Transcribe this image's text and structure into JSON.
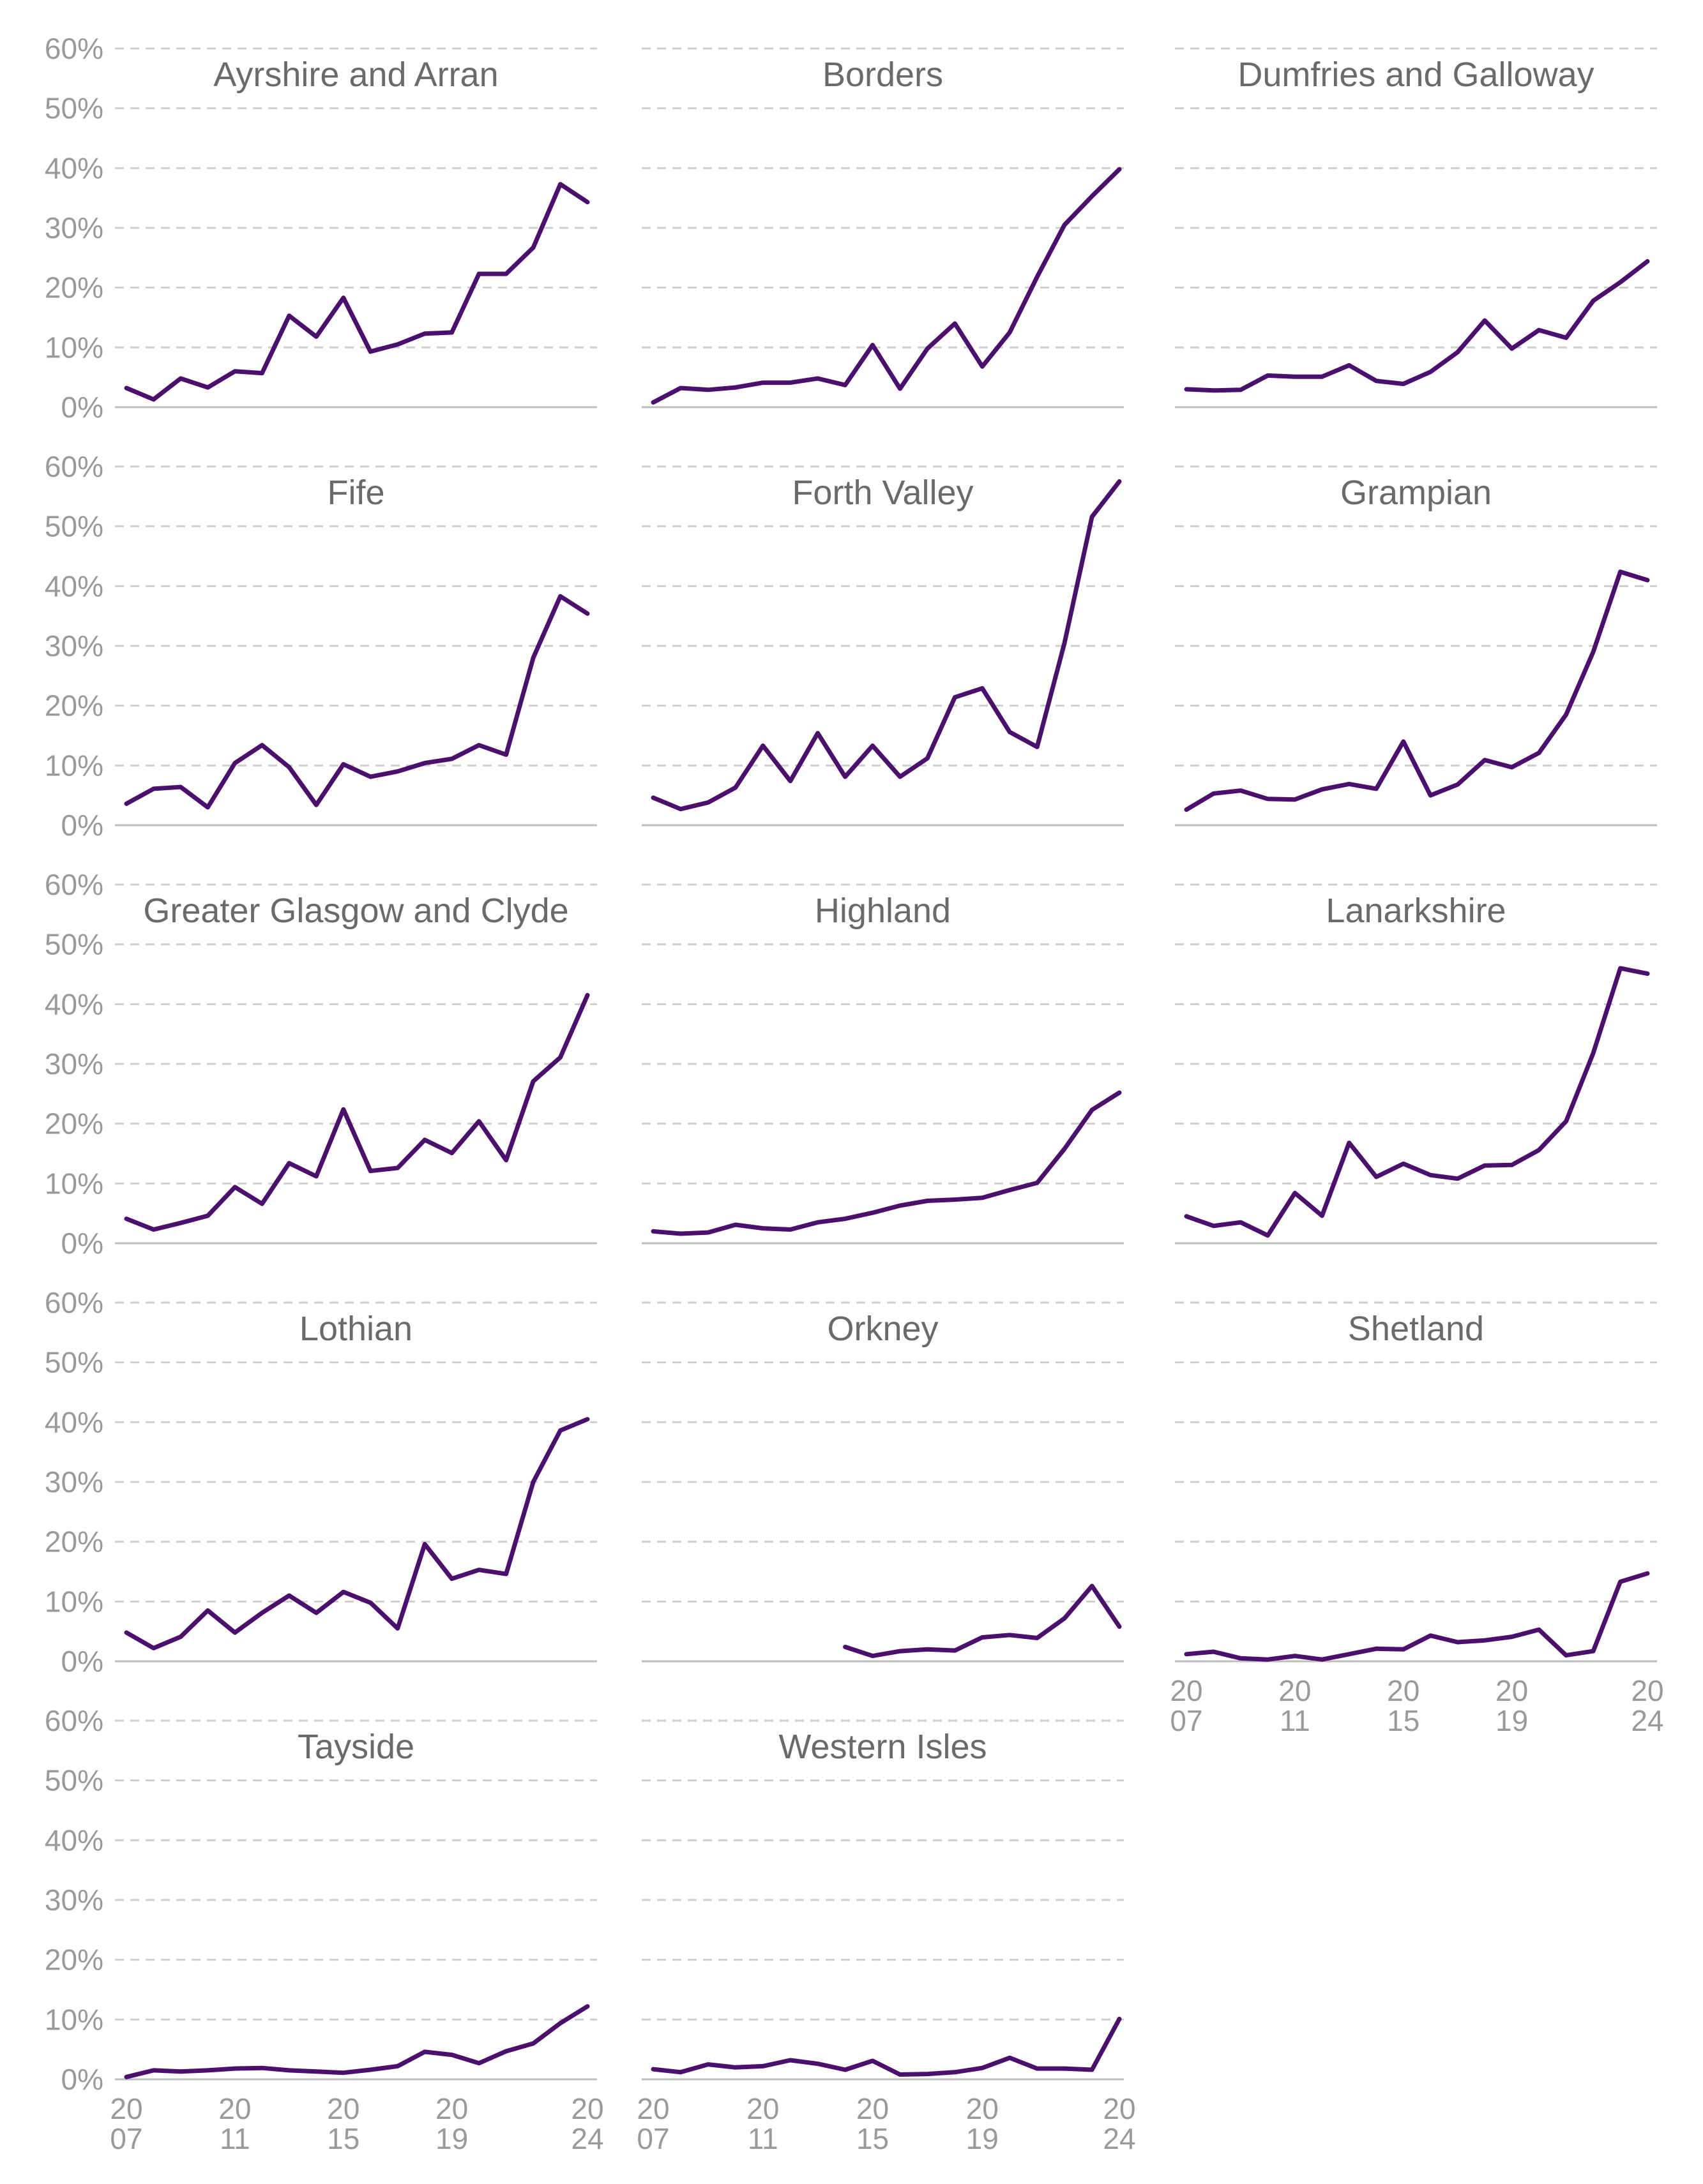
{
  "chart_data": {
    "type": "line",
    "layout": "small-multiples",
    "x": [
      2007,
      2008,
      2009,
      2010,
      2011,
      2012,
      2013,
      2014,
      2015,
      2016,
      2017,
      2018,
      2019,
      2020,
      2021,
      2022,
      2023,
      2024
    ],
    "x_tick_years": [
      2007,
      2011,
      2015,
      2019,
      2024
    ],
    "x_tick_labels": [
      [
        "20",
        "07"
      ],
      [
        "20",
        "11"
      ],
      [
        "20",
        "15"
      ],
      [
        "20",
        "19"
      ],
      [
        "20",
        "24"
      ]
    ],
    "y_ticks": [
      "0%",
      "10%",
      "20%",
      "30%",
      "40%",
      "50%",
      "60%"
    ],
    "ylim": [
      0,
      60
    ],
    "grid": true,
    "line_color": "#4b0f6e",
    "panels": [
      {
        "title": "Ayrshire and Arran",
        "values": [
          3.2,
          1.3,
          4.8,
          3.3,
          6.0,
          5.7,
          15.3,
          11.8,
          18.3,
          9.3,
          10.5,
          12.3,
          12.5,
          22.3,
          22.3,
          26.7,
          37.3,
          34.3
        ]
      },
      {
        "title": "Borders",
        "values": [
          0.8,
          3.2,
          2.9,
          3.3,
          4.1,
          4.1,
          4.8,
          3.7,
          10.4,
          3.1,
          9.8,
          14.0,
          6.8,
          12.5,
          21.8,
          30.5,
          35.3,
          39.8
        ]
      },
      {
        "title": "Dumfries and Galloway",
        "values": [
          3.0,
          2.8,
          2.9,
          5.3,
          5.1,
          5.1,
          7.0,
          4.4,
          3.9,
          5.9,
          9.2,
          14.5,
          9.8,
          12.9,
          11.6,
          17.8,
          20.9,
          24.4
        ]
      },
      {
        "title": "Fife",
        "values": [
          3.6,
          6.1,
          6.4,
          3.0,
          10.4,
          13.4,
          9.7,
          3.4,
          10.2,
          8.1,
          9.0,
          10.4,
          11.1,
          13.4,
          11.8,
          28.0,
          38.3,
          35.4
        ]
      },
      {
        "title": "Forth Valley",
        "values": [
          4.6,
          2.7,
          3.8,
          6.3,
          13.3,
          7.4,
          15.4,
          8.1,
          13.3,
          8.1,
          11.2,
          21.4,
          22.9,
          15.6,
          13.1,
          30.5,
          51.6,
          57.5
        ]
      },
      {
        "title": "Grampian",
        "values": [
          2.6,
          5.3,
          5.8,
          4.4,
          4.3,
          6.0,
          6.9,
          6.1,
          14.0,
          5.0,
          6.8,
          10.9,
          9.7,
          12.1,
          18.5,
          29.0,
          42.4,
          41.0
        ]
      },
      {
        "title": "Greater Glasgow and Clyde",
        "values": [
          4.1,
          2.3,
          3.4,
          4.6,
          9.4,
          6.6,
          13.4,
          11.2,
          22.4,
          12.1,
          12.6,
          17.3,
          15.1,
          20.4,
          13.9,
          27.1,
          31.1,
          41.5
        ]
      },
      {
        "title": "Highland",
        "values": [
          2.0,
          1.6,
          1.8,
          3.1,
          2.5,
          2.3,
          3.5,
          4.1,
          5.1,
          6.3,
          7.1,
          7.3,
          7.6,
          8.9,
          10.1,
          15.8,
          22.3,
          25.2
        ]
      },
      {
        "title": "Lanarkshire",
        "values": [
          4.5,
          2.9,
          3.5,
          1.3,
          8.4,
          4.6,
          16.8,
          11.1,
          13.3,
          11.4,
          10.8,
          13.0,
          13.1,
          15.6,
          20.4,
          31.8,
          46.0,
          45.1
        ]
      },
      {
        "title": "Lothian",
        "values": [
          4.8,
          2.2,
          4.1,
          8.5,
          4.8,
          8.1,
          11.0,
          8.1,
          11.6,
          9.8,
          5.5,
          19.6,
          13.8,
          15.3,
          14.6,
          30.0,
          38.6,
          40.5
        ]
      },
      {
        "title": "Orkney",
        "values": [
          null,
          null,
          null,
          null,
          null,
          null,
          null,
          2.4,
          0.9,
          1.7,
          2.0,
          1.8,
          4.0,
          4.4,
          3.9,
          7.2,
          12.6,
          5.8
        ]
      },
      {
        "title": "Shetland",
        "values": [
          1.2,
          1.6,
          0.5,
          0.3,
          0.9,
          0.3,
          1.2,
          2.1,
          2.0,
          4.3,
          3.2,
          3.5,
          4.1,
          5.3,
          1.0,
          1.7,
          13.3,
          14.7
        ]
      },
      {
        "title": "Tayside",
        "values": [
          0.4,
          1.5,
          1.3,
          1.5,
          1.8,
          1.9,
          1.5,
          1.3,
          1.1,
          1.6,
          2.2,
          4.6,
          4.1,
          2.7,
          4.7,
          6.0,
          9.4,
          12.2
        ]
      },
      {
        "title": "Western Isles",
        "values": [
          1.7,
          1.2,
          2.5,
          2.0,
          2.2,
          3.2,
          2.6,
          1.6,
          3.1,
          0.8,
          0.9,
          1.2,
          1.9,
          3.6,
          1.8,
          1.8,
          1.6,
          10.1
        ]
      }
    ]
  }
}
